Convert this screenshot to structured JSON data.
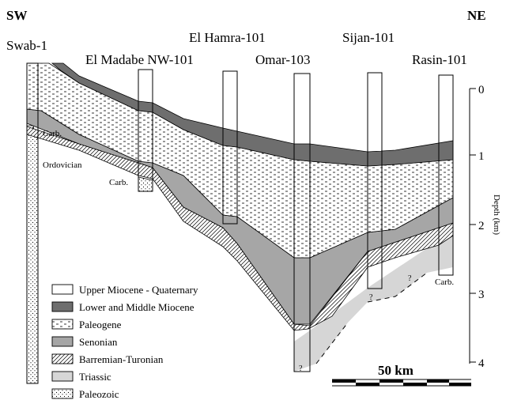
{
  "orientation": {
    "left": "SW",
    "right": "NE"
  },
  "wells": [
    {
      "name": "Swab-1"
    },
    {
      "name": "El Madabe NW-101"
    },
    {
      "name": "El Hamra-101"
    },
    {
      "name": "Omar-103"
    },
    {
      "name": "Sijan-101"
    },
    {
      "name": "Rasin-101"
    }
  ],
  "annotations": {
    "carb_1": "Carb.",
    "carb_2": "Carb.",
    "carb_3": "Carb.",
    "ordovician": "Ordovician",
    "unknown": "?"
  },
  "depth_axis": {
    "label": "Depth (km)",
    "ticks": [
      "0",
      "1",
      "2",
      "3",
      "4"
    ]
  },
  "scale_bar": {
    "label": "50 km"
  },
  "legend": [
    {
      "label": "Upper Miocene - Quaternary",
      "fill": "#ffffff",
      "pattern": "none"
    },
    {
      "label": "Lower and Middle Miocene",
      "fill": "#6e6e6e",
      "pattern": "none"
    },
    {
      "label": "Paleogene",
      "fill": "#ffffff",
      "pattern": "dashes"
    },
    {
      "label": "Senonian",
      "fill": "#a6a6a6",
      "pattern": "none"
    },
    {
      "label": "Barremian-Turonian",
      "fill": "#ffffff",
      "pattern": "hatch"
    },
    {
      "label": "Triassic",
      "fill": "#d6d6d6",
      "pattern": "none"
    },
    {
      "label": "Paleozoic",
      "fill": "#ffffff",
      "pattern": "dots"
    }
  ]
}
